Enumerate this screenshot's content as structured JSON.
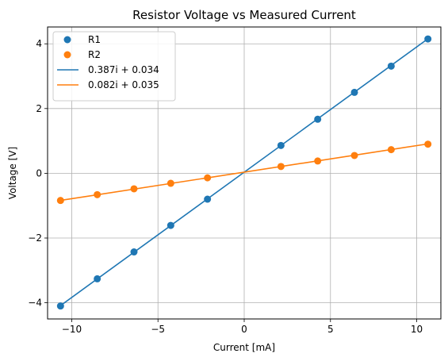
{
  "chart_data": {
    "type": "scatter",
    "title": "Resistor Voltage vs Measured Current",
    "xlabel": "Current [mA]",
    "ylabel": "Voltage [V]",
    "xlim": [
      -11.4,
      11.4
    ],
    "ylim": [
      -4.5,
      4.52
    ],
    "x_ticks": [
      -10,
      -5,
      0,
      5,
      10
    ],
    "y_ticks": [
      -4,
      -2,
      0,
      2,
      4
    ],
    "x_tick_labels": [
      "−10",
      "−5",
      "0",
      "5",
      "10"
    ],
    "y_tick_labels": [
      "−4",
      "−2",
      "0",
      "2",
      "4"
    ],
    "grid": true,
    "legend_position": "top-left",
    "series": [
      {
        "name": "R1",
        "kind": "points",
        "color": "#1f77b4",
        "x": [
          -10.65,
          -8.52,
          -6.39,
          -4.26,
          -2.13,
          2.13,
          4.26,
          6.39,
          8.52,
          10.65
        ],
        "y": [
          -4.1,
          -3.26,
          -2.43,
          -1.61,
          -0.8,
          0.86,
          1.67,
          2.5,
          3.31,
          4.15
        ]
      },
      {
        "name": "R2",
        "kind": "points",
        "color": "#ff7f0e",
        "x": [
          -10.65,
          -8.52,
          -6.39,
          -4.26,
          -2.13,
          2.13,
          4.26,
          6.39,
          8.52,
          10.65
        ],
        "y": [
          -0.84,
          -0.66,
          -0.48,
          -0.31,
          -0.14,
          0.21,
          0.38,
          0.55,
          0.73,
          0.9
        ]
      },
      {
        "name": "0.387i + 0.034",
        "kind": "line",
        "color": "#1f77b4",
        "x": [
          -10.65,
          10.65
        ],
        "y": [
          -4.088,
          4.156
        ]
      },
      {
        "name": "0.082i + 0.035",
        "kind": "line",
        "color": "#ff7f0e",
        "x": [
          -10.65,
          10.65
        ],
        "y": [
          -0.838,
          0.908
        ]
      }
    ]
  }
}
